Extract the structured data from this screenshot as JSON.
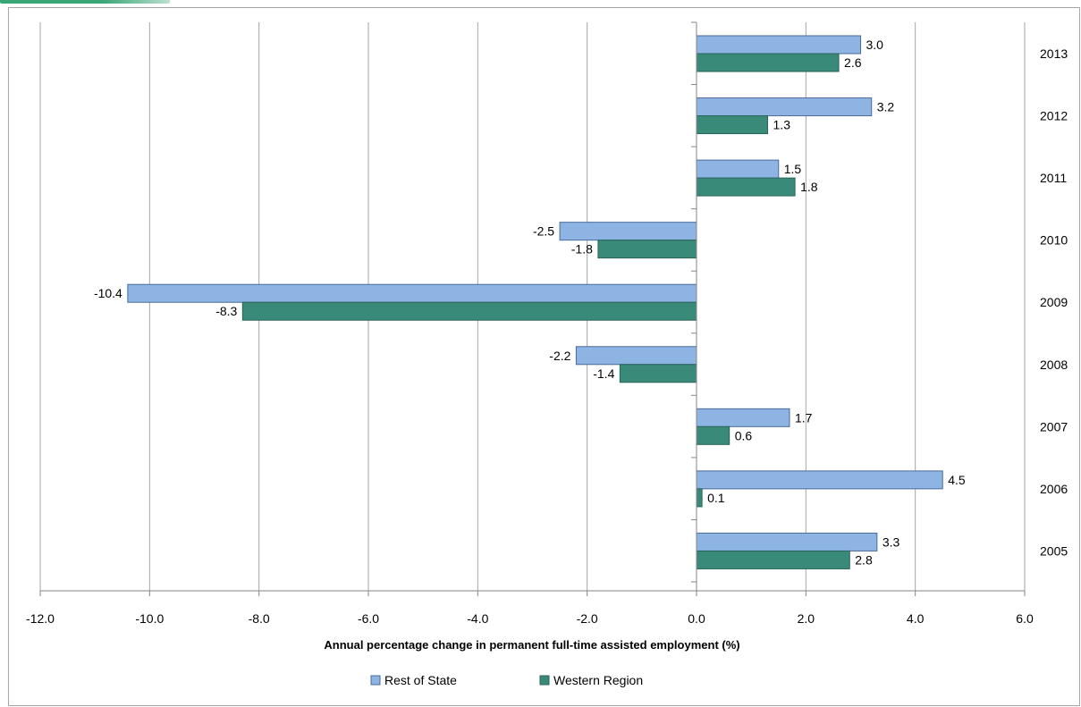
{
  "chart_data": {
    "type": "bar",
    "orientation": "horizontal",
    "categories": [
      "2013",
      "2012",
      "2011",
      "2010",
      "2009",
      "2008",
      "2007",
      "2006",
      "2005"
    ],
    "series": [
      {
        "name": "Rest of State",
        "color": "#8eb4e3",
        "values": [
          3.0,
          3.2,
          1.5,
          -2.5,
          -10.4,
          -2.2,
          1.7,
          4.5,
          3.3
        ]
      },
      {
        "name": "Western Region",
        "color": "#3a8a7a",
        "values": [
          2.6,
          1.3,
          1.8,
          -1.8,
          -8.3,
          -1.4,
          0.6,
          0.1,
          2.8
        ]
      }
    ],
    "xlabel": "Annual percentage change in permanent full-time assisted employment (%)",
    "xlim": [
      -12.0,
      6.0
    ],
    "xticks": [
      "-12.0",
      "-10.0",
      "-8.0",
      "-6.0",
      "-4.0",
      "-2.0",
      "0.0",
      "2.0",
      "4.0",
      "6.0"
    ],
    "grid": "vertical",
    "legend_position": "bottom"
  }
}
